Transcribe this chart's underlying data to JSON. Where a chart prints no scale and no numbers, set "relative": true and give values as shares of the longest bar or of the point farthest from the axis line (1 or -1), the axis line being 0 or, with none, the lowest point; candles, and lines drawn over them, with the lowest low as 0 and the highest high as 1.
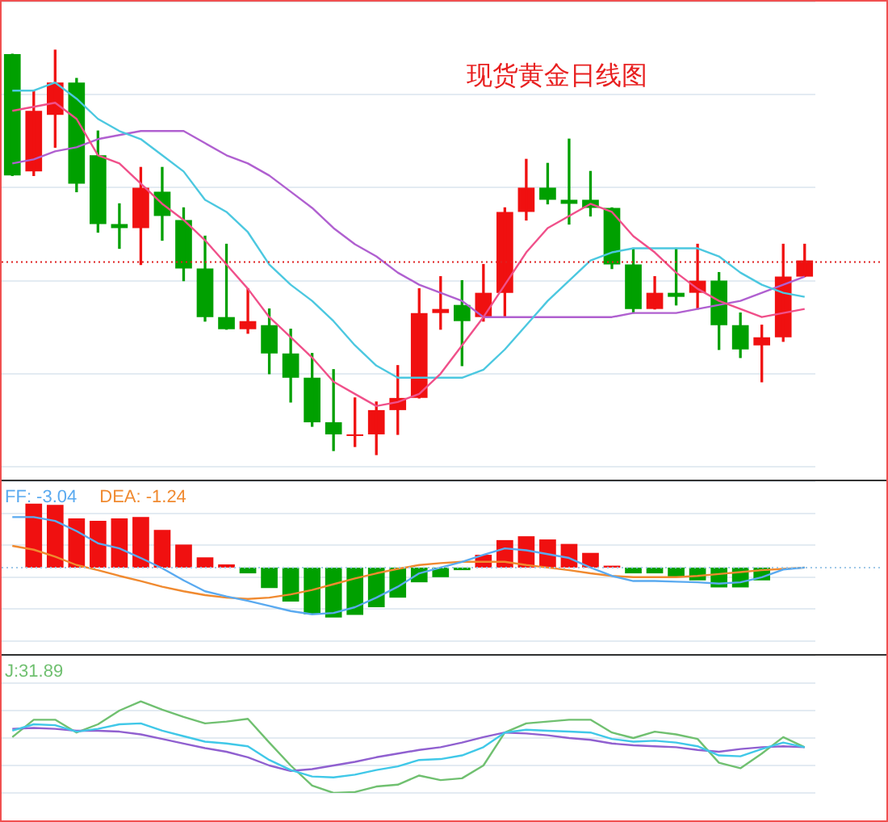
{
  "chart_data": [
    {
      "type": "candlestick",
      "title": "现货黄金日线图",
      "relative": true,
      "grid": "y",
      "tick_labels": false,
      "categories": [
        null,
        null,
        null,
        null,
        null,
        null,
        null,
        null,
        null,
        null,
        null,
        null,
        null,
        null,
        null,
        null,
        null,
        null,
        null,
        null,
        null,
        null,
        null,
        null,
        null,
        null,
        null,
        null,
        null,
        null,
        null,
        null,
        null,
        null,
        null,
        null,
        null,
        null
      ],
      "ohlc": [
        [
          0.99,
          0.99,
          0.69,
          0.69
        ],
        [
          0.7,
          0.9,
          0.69,
          0.85
        ],
        [
          0.84,
          1,
          0.76,
          0.92
        ],
        [
          0.92,
          0.93,
          0.65,
          0.67
        ],
        [
          0.74,
          0.8,
          0.55,
          0.57
        ],
        [
          0.57,
          0.62,
          0.51,
          0.56
        ],
        [
          0.56,
          0.71,
          0.47,
          0.66
        ],
        [
          0.65,
          0.71,
          0.53,
          0.59
        ],
        [
          0.58,
          0.61,
          0.43,
          0.46
        ],
        [
          0.46,
          0.54,
          0.33,
          0.34
        ],
        [
          0.34,
          0.52,
          0.31,
          0.31
        ],
        [
          0.31,
          0.41,
          0.3,
          0.33
        ],
        [
          0.32,
          0.36,
          0.2,
          0.25
        ],
        [
          0.25,
          0.31,
          0.13,
          0.19
        ],
        [
          0.19,
          0.25,
          0.07,
          0.08
        ],
        [
          0.08,
          0.21,
          0.01,
          0.05
        ],
        [
          0.05,
          0.14,
          0.02,
          0.05
        ],
        [
          0.05,
          0.13,
          0,
          0.11
        ],
        [
          0.11,
          0.22,
          0.05,
          0.14
        ],
        [
          0.14,
          0.41,
          0.14,
          0.35
        ],
        [
          0.35,
          0.44,
          0.31,
          0.36
        ],
        [
          0.37,
          0.43,
          0.22,
          0.33
        ],
        [
          0.34,
          0.47,
          0.33,
          0.4
        ],
        [
          0.4,
          0.61,
          0.34,
          0.6
        ],
        [
          0.6,
          0.73,
          0.58,
          0.66
        ],
        [
          0.66,
          0.72,
          0.62,
          0.63
        ],
        [
          0.63,
          0.78,
          0.57,
          0.62
        ],
        [
          0.63,
          0.7,
          0.59,
          0.61
        ],
        [
          0.61,
          0.61,
          0.46,
          0.47
        ],
        [
          0.47,
          0.51,
          0.35,
          0.36
        ],
        [
          0.36,
          0.44,
          0.36,
          0.4
        ],
        [
          0.4,
          0.51,
          0.37,
          0.39
        ],
        [
          0.4,
          0.52,
          0.36,
          0.43
        ],
        [
          0.43,
          0.45,
          0.26,
          0.32
        ],
        [
          0.32,
          0.35,
          0.24,
          0.26
        ],
        [
          0.27,
          0.32,
          0.18,
          0.29
        ],
        [
          0.29,
          0.52,
          0.28,
          0.44
        ],
        [
          0.44,
          0.52,
          0.44,
          0.48
        ]
      ],
      "colors": [
        "#00a000",
        "#f01010",
        "#f01010",
        "#00a000",
        "#00a000",
        "#00a000",
        "#f01010",
        "#00a000",
        "#00a000",
        "#00a000",
        "#00a000",
        "#f01010",
        "#00a000",
        "#00a000",
        "#00a000",
        "#00a000",
        "#f01010",
        "#f01010",
        "#f01010",
        "#f01010",
        "#f01010",
        "#00a000",
        "#f01010",
        "#f01010",
        "#f01010",
        "#00a000",
        "#00a000",
        "#00a000",
        "#00a000",
        "#00a000",
        "#f01010",
        "#00a000",
        "#f01010",
        "#00a000",
        "#00a000",
        "#f01010",
        "#f01010",
        "#f01010"
      ],
      "series": [
        {
          "type": "line",
          "color": "#f0508a",
          "values": [
            0.85,
            0.86,
            0.87,
            0.83,
            0.74,
            0.72,
            0.67,
            0.62,
            0.58,
            0.53,
            0.47,
            0.41,
            0.34,
            0.29,
            0.24,
            0.18,
            0.15,
            0.12,
            0.13,
            0.15,
            0.2,
            0.27,
            0.34,
            0.42,
            0.5,
            0.56,
            0.59,
            0.62,
            0.6,
            0.54,
            0.5,
            0.45,
            0.41,
            0.38,
            0.36,
            0.34,
            0.35,
            0.36
          ]
        },
        {
          "type": "line",
          "color": "#4cc8e0",
          "values": [
            0.9,
            0.9,
            0.92,
            0.88,
            0.83,
            0.8,
            0.78,
            0.74,
            0.7,
            0.63,
            0.6,
            0.55,
            0.47,
            0.42,
            0.38,
            0.33,
            0.27,
            0.22,
            0.19,
            0.19,
            0.19,
            0.19,
            0.21,
            0.26,
            0.32,
            0.38,
            0.43,
            0.48,
            0.5,
            0.51,
            0.51,
            0.51,
            0.51,
            0.49,
            0.45,
            0.42,
            0.4,
            0.39
          ]
        },
        {
          "type": "line",
          "color": "#b060d0",
          "values": [
            0.72,
            0.73,
            0.75,
            0.76,
            0.78,
            0.79,
            0.8,
            0.8,
            0.8,
            0.77,
            0.74,
            0.72,
            0.69,
            0.65,
            0.61,
            0.56,
            0.52,
            0.49,
            0.45,
            0.42,
            0.4,
            0.38,
            0.34,
            0.34,
            0.34,
            0.34,
            0.34,
            0.34,
            0.34,
            0.35,
            0.35,
            0.35,
            0.36,
            0.37,
            0.38,
            0.4,
            0.42,
            0.44
          ]
        }
      ],
      "ref_lines": [
        {
          "axis": "y",
          "value": 0.476,
          "color": "#e02020",
          "line_style": "dotted"
        }
      ]
    },
    {
      "type": "bar",
      "relative": true,
      "grid": "y",
      "tick_labels": false,
      "legend": "top left",
      "categories": [
        null,
        null,
        null,
        null,
        null,
        null,
        null,
        null,
        null,
        null,
        null,
        null,
        null,
        null,
        null,
        null,
        null,
        null,
        null,
        null,
        null,
        null,
        null,
        null,
        null,
        null,
        null,
        null,
        null,
        null,
        null,
        null,
        null,
        null,
        null,
        null,
        null,
        null
      ],
      "series": [
        {
          "type": "bar",
          "colors": [
            "#f01010",
            "#f01010",
            "#f01010",
            "#f01010",
            "#f01010",
            "#f01010",
            "#f01010",
            "#f01010",
            "#f01010",
            "#f01010",
            "#f01010",
            "#00a000",
            "#00a000",
            "#00a000",
            "#00a000",
            "#00a000",
            "#00a000",
            "#00a000",
            "#00a000",
            "#00a000",
            "#00a000",
            "#00a000",
            "#f01010",
            "#f01010",
            "#f01010",
            "#f01010",
            "#f01010",
            "#f01010",
            "#f01010",
            "#00a000",
            "#00a000",
            "#00a000",
            "#00a000",
            "#00a000",
            "#00a000",
            "#00a000",
            "#00a000",
            "#00a000"
          ],
          "values": [
            null,
            1.0,
            0.98,
            0.77,
            0.73,
            0.77,
            0.79,
            0.59,
            0.36,
            0.16,
            0.05,
            -0.09,
            -0.32,
            -0.53,
            -0.73,
            -0.78,
            -0.74,
            -0.62,
            -0.47,
            -0.23,
            -0.15,
            -0.04,
            0.2,
            0.43,
            0.49,
            0.44,
            0.37,
            0.23,
            0.03,
            -0.09,
            -0.09,
            -0.15,
            -0.2,
            -0.31,
            -0.31,
            -0.2,
            null,
            null
          ]
        },
        {
          "type": "line",
          "name": "FF: -3.04",
          "color": "#5aaaf0",
          "values": [
            0.79,
            0.79,
            0.73,
            0.57,
            0.38,
            0.3,
            0.15,
            -0.01,
            -0.2,
            -0.37,
            -0.45,
            -0.52,
            -0.6,
            -0.68,
            -0.73,
            -0.71,
            -0.62,
            -0.47,
            -0.3,
            -0.09,
            0,
            0.09,
            0.2,
            0.3,
            0.27,
            0.21,
            0.15,
            0,
            -0.13,
            -0.21,
            -0.21,
            -0.22,
            -0.23,
            -0.25,
            -0.23,
            -0.15,
            -0.03,
            0
          ]
        },
        {
          "type": "line",
          "name": "DEA: -1.24",
          "color": "#f08a30",
          "values": [
            0.34,
            0.28,
            0.17,
            0.04,
            -0.04,
            -0.13,
            -0.21,
            -0.3,
            -0.37,
            -0.43,
            -0.47,
            -0.49,
            -0.47,
            -0.42,
            -0.35,
            -0.26,
            -0.17,
            -0.09,
            -0.02,
            0.04,
            0.07,
            0.09,
            0.09,
            0.09,
            0.04,
            0,
            -0.04,
            -0.09,
            -0.13,
            -0.15,
            -0.15,
            -0.15,
            -0.13,
            -0.1,
            -0.07,
            -0.04,
            -0.02,
            0
          ]
        }
      ],
      "ref_lines": [
        {
          "axis": "y",
          "value": 0,
          "color": "#a0c8e8",
          "line_style": "dotted"
        }
      ]
    },
    {
      "type": "line",
      "relative": true,
      "grid": "y",
      "tick_labels": false,
      "legend": "top left",
      "categories": [
        null,
        null,
        null,
        null,
        null,
        null,
        null,
        null,
        null,
        null,
        null,
        null,
        null,
        null,
        null,
        null,
        null,
        null,
        null,
        null,
        null,
        null,
        null,
        null,
        null,
        null,
        null,
        null,
        null,
        null,
        null,
        null,
        null,
        null,
        null,
        null,
        null,
        null
      ],
      "series": [
        {
          "color": "#40c8e8",
          "values": [
            0.68,
            0.75,
            0.74,
            0.67,
            0.7,
            0.75,
            0.76,
            0.68,
            0.62,
            0.56,
            0.54,
            0.51,
            0.36,
            0.25,
            0.18,
            0.17,
            0.2,
            0.25,
            0.29,
            0.36,
            0.37,
            0.41,
            0.5,
            0.66,
            0.69,
            0.68,
            0.67,
            0.66,
            0.59,
            0.56,
            0.57,
            0.55,
            0.51,
            0.41,
            0.4,
            0.48,
            0.55,
            0.5
          ]
        },
        {
          "color": "#9060d0",
          "values": [
            0.7,
            0.71,
            0.7,
            0.68,
            0.68,
            0.67,
            0.64,
            0.59,
            0.54,
            0.49,
            0.45,
            0.39,
            0.3,
            0.24,
            0.26,
            0.3,
            0.34,
            0.39,
            0.43,
            0.47,
            0.5,
            0.55,
            0.61,
            0.66,
            0.65,
            0.63,
            0.6,
            0.58,
            0.54,
            0.52,
            0.51,
            0.5,
            0.47,
            0.45,
            0.48,
            0.5,
            0.51,
            0.5
          ]
        },
        {
          "name": "J:31.89",
          "color": "#70c070",
          "values": [
            0.61,
            0.8,
            0.8,
            0.66,
            0.75,
            0.9,
            1.0,
            0.91,
            0.83,
            0.76,
            0.78,
            0.81,
            0.55,
            0.3,
            0.08,
            0.0,
            0.01,
            0.07,
            0.09,
            0.19,
            0.14,
            0.16,
            0.3,
            0.66,
            0.76,
            0.78,
            0.8,
            0.8,
            0.66,
            0.6,
            0.67,
            0.64,
            0.59,
            0.33,
            0.27,
            0.43,
            0.61,
            0.5
          ]
        }
      ]
    }
  ]
}
